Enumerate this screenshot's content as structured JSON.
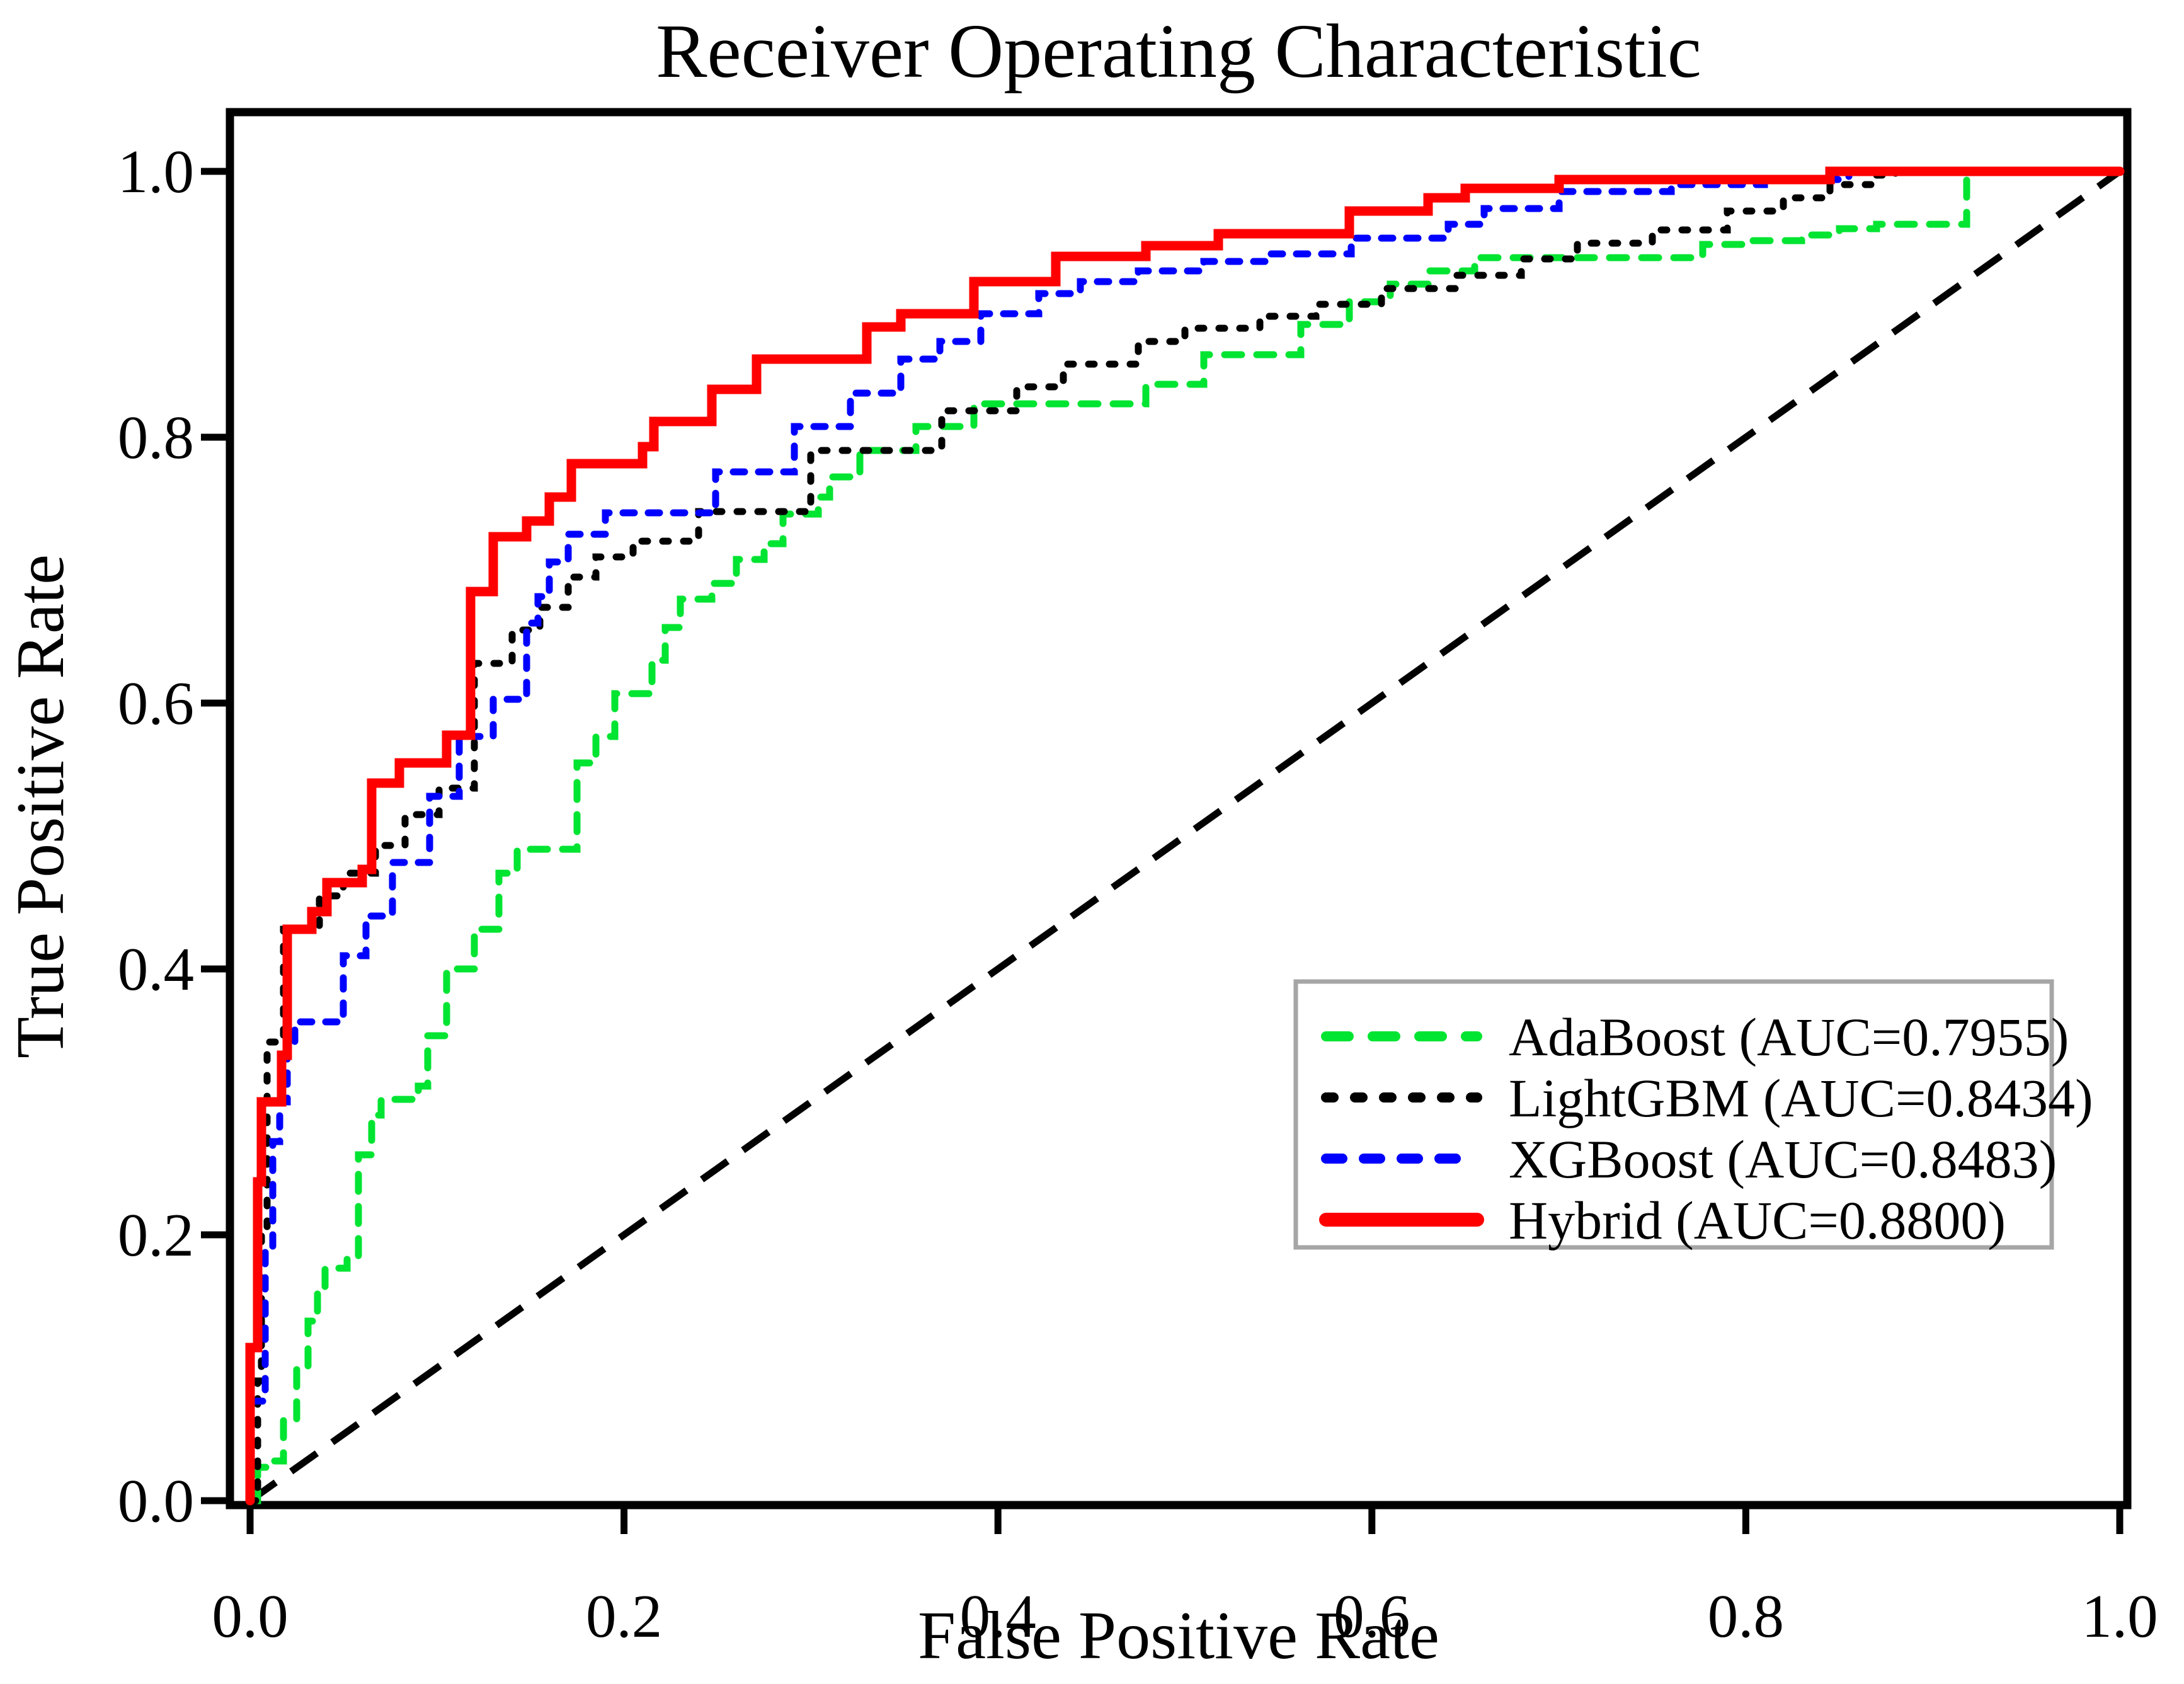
{
  "chart_data": {
    "type": "line",
    "subtype": "roc-step-curves",
    "title": "Receiver Operating Characteristic",
    "xlabel": "False Positive Rate",
    "ylabel": "True Positive Rate",
    "xlim": [
      0.0,
      1.0
    ],
    "ylim": [
      0.0,
      1.0
    ],
    "x_ticks": [
      "0.0",
      "0.2",
      "0.4",
      "0.6",
      "0.8",
      "1.0"
    ],
    "y_ticks": [
      "0.0",
      "0.2",
      "0.4",
      "0.6",
      "0.8",
      "1.0"
    ],
    "grid": false,
    "legend_position": "lower right",
    "series": [
      {
        "name": "adaboost",
        "label": "AdaBoost (AUC=0.7955)",
        "auc": 0.7955,
        "color": "#00e432",
        "style": "dashed",
        "points": [
          [
            0,
            0
          ],
          [
            0.004,
            0
          ],
          [
            0.004,
            0.025
          ],
          [
            0.009,
            0.025
          ],
          [
            0.009,
            0.03
          ],
          [
            0.018,
            0.03
          ],
          [
            0.018,
            0.06
          ],
          [
            0.025,
            0.06
          ],
          [
            0.025,
            0.1
          ],
          [
            0.031,
            0.1
          ],
          [
            0.031,
            0.135
          ],
          [
            0.036,
            0.135
          ],
          [
            0.036,
            0.158
          ],
          [
            0.04,
            0.158
          ],
          [
            0.04,
            0.175
          ],
          [
            0.052,
            0.175
          ],
          [
            0.052,
            0.183
          ],
          [
            0.058,
            0.183
          ],
          [
            0.058,
            0.26
          ],
          [
            0.065,
            0.26
          ],
          [
            0.065,
            0.29
          ],
          [
            0.07,
            0.29
          ],
          [
            0.07,
            0.302
          ],
          [
            0.09,
            0.302
          ],
          [
            0.09,
            0.312
          ],
          [
            0.095,
            0.312
          ],
          [
            0.095,
            0.35
          ],
          [
            0.105,
            0.35
          ],
          [
            0.105,
            0.4
          ],
          [
            0.12,
            0.4
          ],
          [
            0.12,
            0.43
          ],
          [
            0.133,
            0.43
          ],
          [
            0.133,
            0.472
          ],
          [
            0.143,
            0.472
          ],
          [
            0.143,
            0.49
          ],
          [
            0.175,
            0.49
          ],
          [
            0.175,
            0.555
          ],
          [
            0.185,
            0.555
          ],
          [
            0.185,
            0.575
          ],
          [
            0.195,
            0.575
          ],
          [
            0.195,
            0.607
          ],
          [
            0.215,
            0.607
          ],
          [
            0.215,
            0.632
          ],
          [
            0.222,
            0.632
          ],
          [
            0.222,
            0.657
          ],
          [
            0.23,
            0.657
          ],
          [
            0.23,
            0.678
          ],
          [
            0.247,
            0.678
          ],
          [
            0.247,
            0.69
          ],
          [
            0.26,
            0.69
          ],
          [
            0.26,
            0.708
          ],
          [
            0.275,
            0.708
          ],
          [
            0.275,
            0.72
          ],
          [
            0.285,
            0.72
          ],
          [
            0.285,
            0.742
          ],
          [
            0.304,
            0.742
          ],
          [
            0.304,
            0.755
          ],
          [
            0.31,
            0.755
          ],
          [
            0.31,
            0.77
          ],
          [
            0.326,
            0.77
          ],
          [
            0.326,
            0.79
          ],
          [
            0.356,
            0.79
          ],
          [
            0.356,
            0.808
          ],
          [
            0.387,
            0.808
          ],
          [
            0.387,
            0.825
          ],
          [
            0.479,
            0.825
          ],
          [
            0.479,
            0.84
          ],
          [
            0.51,
            0.84
          ],
          [
            0.51,
            0.862
          ],
          [
            0.562,
            0.862
          ],
          [
            0.562,
            0.885
          ],
          [
            0.588,
            0.885
          ],
          [
            0.588,
            0.902
          ],
          [
            0.61,
            0.902
          ],
          [
            0.61,
            0.915
          ],
          [
            0.63,
            0.915
          ],
          [
            0.63,
            0.925
          ],
          [
            0.655,
            0.925
          ],
          [
            0.655,
            0.935
          ],
          [
            0.777,
            0.935
          ],
          [
            0.777,
            0.945
          ],
          [
            0.8,
            0.945
          ],
          [
            0.8,
            0.948
          ],
          [
            0.83,
            0.948
          ],
          [
            0.83,
            0.952
          ],
          [
            0.85,
            0.952
          ],
          [
            0.85,
            0.957
          ],
          [
            0.87,
            0.957
          ],
          [
            0.87,
            0.96
          ],
          [
            0.918,
            0.96
          ],
          [
            0.918,
            1
          ],
          [
            1,
            1
          ]
        ]
      },
      {
        "name": "lightgbm",
        "label": "LightGBM (AUC=0.8434)",
        "auc": 0.8434,
        "color": "#000000",
        "style": "dotted",
        "points": [
          [
            0,
            0
          ],
          [
            0.004,
            0
          ],
          [
            0.004,
            0.09
          ],
          [
            0.006,
            0.09
          ],
          [
            0.006,
            0.2
          ],
          [
            0.009,
            0.2
          ],
          [
            0.009,
            0.345
          ],
          [
            0.018,
            0.345
          ],
          [
            0.018,
            0.43
          ],
          [
            0.037,
            0.43
          ],
          [
            0.037,
            0.455
          ],
          [
            0.05,
            0.455
          ],
          [
            0.05,
            0.472
          ],
          [
            0.067,
            0.472
          ],
          [
            0.067,
            0.493
          ],
          [
            0.083,
            0.493
          ],
          [
            0.083,
            0.516
          ],
          [
            0.101,
            0.516
          ],
          [
            0.101,
            0.536
          ],
          [
            0.12,
            0.536
          ],
          [
            0.12,
            0.63
          ],
          [
            0.14,
            0.63
          ],
          [
            0.14,
            0.655
          ],
          [
            0.155,
            0.655
          ],
          [
            0.155,
            0.672
          ],
          [
            0.17,
            0.672
          ],
          [
            0.17,
            0.695
          ],
          [
            0.185,
            0.695
          ],
          [
            0.185,
            0.71
          ],
          [
            0.205,
            0.71
          ],
          [
            0.205,
            0.722
          ],
          [
            0.24,
            0.722
          ],
          [
            0.24,
            0.744
          ],
          [
            0.3,
            0.744
          ],
          [
            0.3,
            0.79
          ],
          [
            0.37,
            0.79
          ],
          [
            0.37,
            0.82
          ],
          [
            0.41,
            0.82
          ],
          [
            0.41,
            0.838
          ],
          [
            0.435,
            0.838
          ],
          [
            0.435,
            0.855
          ],
          [
            0.475,
            0.855
          ],
          [
            0.475,
            0.872
          ],
          [
            0.5,
            0.872
          ],
          [
            0.5,
            0.882
          ],
          [
            0.54,
            0.882
          ],
          [
            0.54,
            0.891
          ],
          [
            0.57,
            0.891
          ],
          [
            0.57,
            0.9
          ],
          [
            0.605,
            0.9
          ],
          [
            0.605,
            0.912
          ],
          [
            0.645,
            0.912
          ],
          [
            0.645,
            0.922
          ],
          [
            0.68,
            0.922
          ],
          [
            0.68,
            0.934
          ],
          [
            0.71,
            0.934
          ],
          [
            0.71,
            0.946
          ],
          [
            0.75,
            0.946
          ],
          [
            0.75,
            0.956
          ],
          [
            0.79,
            0.956
          ],
          [
            0.79,
            0.97
          ],
          [
            0.82,
            0.97
          ],
          [
            0.82,
            0.98
          ],
          [
            0.845,
            0.98
          ],
          [
            0.845,
            0.99
          ],
          [
            0.87,
            0.99
          ],
          [
            0.87,
            0.997
          ],
          [
            0.88,
            0.997
          ],
          [
            0.88,
            1
          ],
          [
            1,
            1
          ]
        ]
      },
      {
        "name": "xgboost",
        "label": "XGBoost (AUC=0.8483)",
        "auc": 0.8483,
        "color": "#0000ff",
        "style": "dashed",
        "points": [
          [
            0,
            0
          ],
          [
            0,
            0.075
          ],
          [
            0.008,
            0.075
          ],
          [
            0.008,
            0.19
          ],
          [
            0.012,
            0.19
          ],
          [
            0.012,
            0.27
          ],
          [
            0.016,
            0.27
          ],
          [
            0.016,
            0.3
          ],
          [
            0.02,
            0.3
          ],
          [
            0.02,
            0.34
          ],
          [
            0.024,
            0.34
          ],
          [
            0.024,
            0.36
          ],
          [
            0.05,
            0.36
          ],
          [
            0.05,
            0.41
          ],
          [
            0.062,
            0.41
          ],
          [
            0.062,
            0.44
          ],
          [
            0.076,
            0.44
          ],
          [
            0.076,
            0.48
          ],
          [
            0.096,
            0.48
          ],
          [
            0.096,
            0.53
          ],
          [
            0.112,
            0.53
          ],
          [
            0.112,
            0.575
          ],
          [
            0.13,
            0.575
          ],
          [
            0.13,
            0.603
          ],
          [
            0.148,
            0.603
          ],
          [
            0.148,
            0.66
          ],
          [
            0.154,
            0.66
          ],
          [
            0.154,
            0.68
          ],
          [
            0.16,
            0.68
          ],
          [
            0.16,
            0.706
          ],
          [
            0.17,
            0.706
          ],
          [
            0.17,
            0.727
          ],
          [
            0.19,
            0.727
          ],
          [
            0.19,
            0.743
          ],
          [
            0.249,
            0.743
          ],
          [
            0.249,
            0.774
          ],
          [
            0.291,
            0.774
          ],
          [
            0.291,
            0.808
          ],
          [
            0.321,
            0.808
          ],
          [
            0.321,
            0.833
          ],
          [
            0.348,
            0.833
          ],
          [
            0.348,
            0.859
          ],
          [
            0.369,
            0.859
          ],
          [
            0.369,
            0.872
          ],
          [
            0.391,
            0.872
          ],
          [
            0.391,
            0.893
          ],
          [
            0.422,
            0.893
          ],
          [
            0.422,
            0.908
          ],
          [
            0.444,
            0.908
          ],
          [
            0.444,
            0.917
          ],
          [
            0.475,
            0.917
          ],
          [
            0.475,
            0.925
          ],
          [
            0.51,
            0.925
          ],
          [
            0.51,
            0.932
          ],
          [
            0.545,
            0.932
          ],
          [
            0.545,
            0.938
          ],
          [
            0.589,
            0.938
          ],
          [
            0.589,
            0.95
          ],
          [
            0.641,
            0.95
          ],
          [
            0.641,
            0.96
          ],
          [
            0.66,
            0.96
          ],
          [
            0.66,
            0.972
          ],
          [
            0.7,
            0.972
          ],
          [
            0.7,
            0.985
          ],
          [
            0.76,
            0.985
          ],
          [
            0.76,
            0.99
          ],
          [
            0.81,
            0.99
          ],
          [
            0.81,
            0.994
          ],
          [
            0.855,
            0.994
          ],
          [
            0.855,
            1
          ],
          [
            1,
            1
          ]
        ]
      },
      {
        "name": "hybrid",
        "label": "Hybrid (AUC=0.8800)",
        "auc": 0.88,
        "color": "#ff0000",
        "style": "solid",
        "points": [
          [
            0,
            0
          ],
          [
            0,
            0.115
          ],
          [
            0.004,
            0.115
          ],
          [
            0.004,
            0.24
          ],
          [
            0.006,
            0.24
          ],
          [
            0.006,
            0.3
          ],
          [
            0.017,
            0.3
          ],
          [
            0.017,
            0.335
          ],
          [
            0.02,
            0.335
          ],
          [
            0.02,
            0.43
          ],
          [
            0.033,
            0.43
          ],
          [
            0.033,
            0.443
          ],
          [
            0.041,
            0.443
          ],
          [
            0.041,
            0.465
          ],
          [
            0.06,
            0.465
          ],
          [
            0.06,
            0.475
          ],
          [
            0.065,
            0.475
          ],
          [
            0.065,
            0.54
          ],
          [
            0.08,
            0.54
          ],
          [
            0.08,
            0.555
          ],
          [
            0.105,
            0.555
          ],
          [
            0.105,
            0.576
          ],
          [
            0.118,
            0.576
          ],
          [
            0.118,
            0.684
          ],
          [
            0.13,
            0.684
          ],
          [
            0.13,
            0.725
          ],
          [
            0.148,
            0.725
          ],
          [
            0.148,
            0.737
          ],
          [
            0.16,
            0.737
          ],
          [
            0.16,
            0.755
          ],
          [
            0.172,
            0.755
          ],
          [
            0.172,
            0.78
          ],
          [
            0.21,
            0.78
          ],
          [
            0.21,
            0.793
          ],
          [
            0.216,
            0.793
          ],
          [
            0.216,
            0.812
          ],
          [
            0.247,
            0.812
          ],
          [
            0.247,
            0.836
          ],
          [
            0.271,
            0.836
          ],
          [
            0.271,
            0.859
          ],
          [
            0.33,
            0.859
          ],
          [
            0.33,
            0.883
          ],
          [
            0.348,
            0.883
          ],
          [
            0.348,
            0.893
          ],
          [
            0.387,
            0.893
          ],
          [
            0.387,
            0.917
          ],
          [
            0.431,
            0.917
          ],
          [
            0.431,
            0.936
          ],
          [
            0.479,
            0.936
          ],
          [
            0.479,
            0.944
          ],
          [
            0.518,
            0.944
          ],
          [
            0.518,
            0.953
          ],
          [
            0.588,
            0.953
          ],
          [
            0.588,
            0.97
          ],
          [
            0.63,
            0.97
          ],
          [
            0.63,
            0.98
          ],
          [
            0.65,
            0.98
          ],
          [
            0.65,
            0.987
          ],
          [
            0.7,
            0.987
          ],
          [
            0.7,
            0.994
          ],
          [
            0.845,
            0.994
          ],
          [
            0.845,
            1
          ],
          [
            1,
            1
          ]
        ]
      }
    ],
    "reference_line": {
      "name": "chance",
      "color": "#000000",
      "style": "dashed",
      "points": [
        [
          0,
          0
        ],
        [
          1,
          1
        ]
      ]
    }
  },
  "colors": {
    "frame": "#000000",
    "text": "#000000",
    "legend_border": "#a6a6a6",
    "background": "#ffffff"
  }
}
